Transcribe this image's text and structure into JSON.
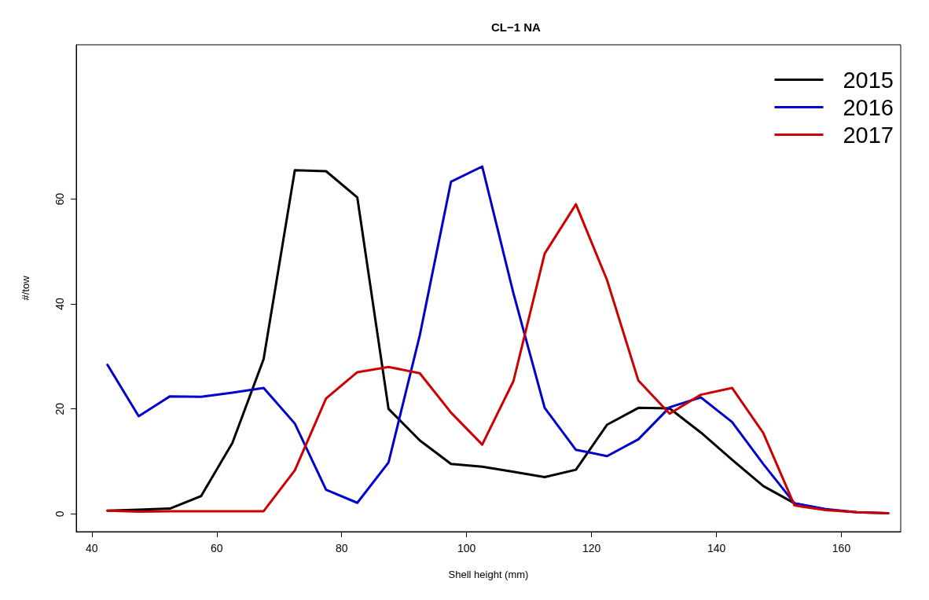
{
  "chart_data": {
    "type": "line",
    "title": "CL−1 NA",
    "xlabel": "Shell height (mm)",
    "ylabel": "#/tow",
    "x": [
      42.5,
      47.5,
      52.5,
      57.5,
      62.5,
      67.5,
      72.5,
      77.5,
      82.5,
      87.5,
      92.5,
      97.5,
      102.5,
      107.5,
      112.5,
      117.5,
      122.5,
      127.5,
      132.5,
      137.5,
      142.5,
      147.5,
      152.5,
      157.5,
      162.5,
      167.5
    ],
    "series": [
      {
        "name": "2015",
        "color": "#000000",
        "values": [
          0.6,
          0.8,
          1.0,
          3.4,
          13.5,
          29.5,
          65.5,
          65.3,
          60.3,
          20,
          14,
          9.5,
          9.0,
          8.0,
          7.0,
          8.4,
          17,
          20.2,
          20.1,
          15.5,
          10.3,
          5.3,
          2.0,
          0.8,
          null,
          null
        ]
      },
      {
        "name": "2016",
        "color": "#0000cc",
        "values": [
          28.4,
          18.6,
          22.4,
          22.3,
          23.1,
          24.0,
          17.2,
          4.6,
          2.1,
          9.8,
          34,
          63.3,
          66.2,
          42,
          20.2,
          12.2,
          11,
          14.2,
          20.3,
          22.2,
          17.5,
          9.5,
          2.0,
          0.9,
          0.3,
          0.1
        ]
      },
      {
        "name": "2017",
        "color": "#cc0000",
        "values": [
          0.6,
          0.4,
          0.5,
          0.5,
          0.5,
          0.5,
          8.3,
          22,
          27,
          28,
          26.8,
          19.3,
          13.2,
          25.3,
          49.6,
          59,
          44.5,
          25.4,
          19.1,
          22.7,
          24,
          15.4,
          1.6,
          0.7,
          0.3,
          0.1
        ]
      }
    ],
    "xlim": [
      37.5,
      169.5
    ],
    "xticks": [
      40,
      60,
      80,
      100,
      120,
      140,
      160
    ],
    "ylim": [
      -3.4,
      89.4
    ],
    "yticks": [
      0,
      20,
      40,
      60
    ],
    "grid": false,
    "legend": "top right",
    "marker": "none",
    "line_style": "solid"
  }
}
